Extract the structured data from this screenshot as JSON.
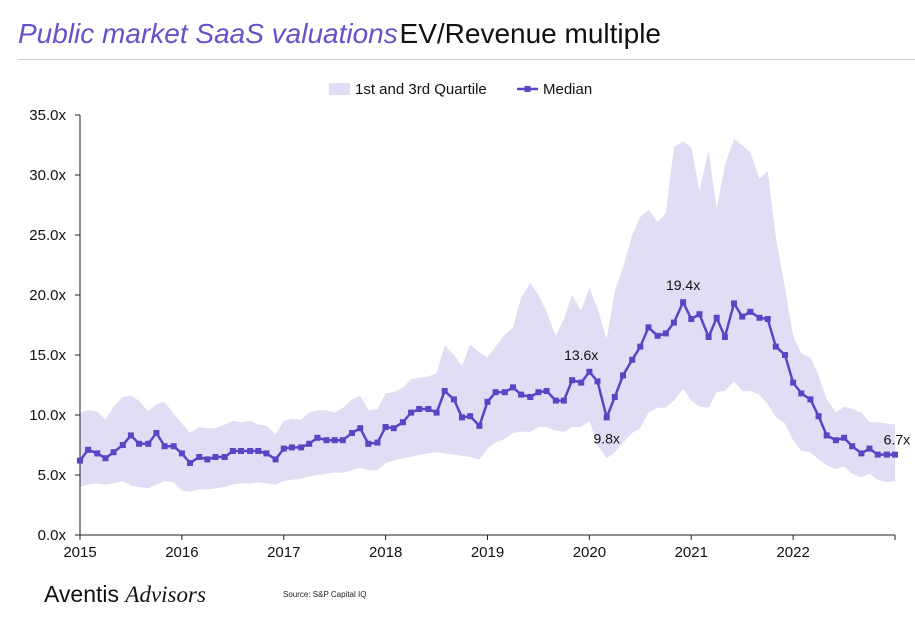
{
  "title": "Public market SaaS valuations",
  "subtitle": "EV/Revenue multiple",
  "brand": {
    "part1": "Aventis",
    "part2": "Advisors"
  },
  "source": "Source: S&P Capital IQ",
  "colors": {
    "median": "#5b45c4",
    "band": "#e2dcf4",
    "title": "#6a4fc9"
  },
  "chart_data": {
    "type": "line",
    "title": "",
    "xlabel": "",
    "ylabel": "",
    "xlim": [
      2015.0,
      2023.0
    ],
    "ylim": [
      0,
      35
    ],
    "x_ticks": [
      {
        "v": 2015,
        "label": "2015"
      },
      {
        "v": 2016,
        "label": "2016"
      },
      {
        "v": 2017,
        "label": "2017"
      },
      {
        "v": 2018,
        "label": "2018"
      },
      {
        "v": 2019,
        "label": "2019"
      },
      {
        "v": 2020,
        "label": "2020"
      },
      {
        "v": 2021,
        "label": "2021"
      },
      {
        "v": 2022,
        "label": "2022"
      }
    ],
    "y_ticks": [
      {
        "v": 0,
        "label": "0.0x"
      },
      {
        "v": 5,
        "label": "5.0x"
      },
      {
        "v": 10,
        "label": "10.0x"
      },
      {
        "v": 15,
        "label": "15.0x"
      },
      {
        "v": 20,
        "label": "20.0x"
      },
      {
        "v": 25,
        "label": "25.0x"
      },
      {
        "v": 30,
        "label": "30.0x"
      },
      {
        "v": 35,
        "label": "35.0x"
      }
    ],
    "grid": false,
    "legend": {
      "position": "top-center",
      "band_label": "1st and 3rd Quartile",
      "line_label": "Median"
    },
    "x": [
      2015.0,
      2015.08,
      2015.17,
      2015.25,
      2015.33,
      2015.42,
      2015.5,
      2015.58,
      2015.67,
      2015.75,
      2015.83,
      2015.92,
      2016.0,
      2016.08,
      2016.17,
      2016.25,
      2016.33,
      2016.42,
      2016.5,
      2016.58,
      2016.67,
      2016.75,
      2016.83,
      2016.92,
      2017.0,
      2017.08,
      2017.17,
      2017.25,
      2017.33,
      2017.42,
      2017.5,
      2017.58,
      2017.67,
      2017.75,
      2017.83,
      2017.92,
      2018.0,
      2018.08,
      2018.17,
      2018.25,
      2018.33,
      2018.42,
      2018.5,
      2018.58,
      2018.67,
      2018.75,
      2018.83,
      2018.92,
      2019.0,
      2019.08,
      2019.17,
      2019.25,
      2019.33,
      2019.42,
      2019.5,
      2019.58,
      2019.67,
      2019.75,
      2019.83,
      2019.92,
      2020.0,
      2020.08,
      2020.17,
      2020.25,
      2020.33,
      2020.42,
      2020.5,
      2020.58,
      2020.67,
      2020.75,
      2020.83,
      2020.92,
      2021.0,
      2021.08,
      2021.17,
      2021.25,
      2021.33,
      2021.42,
      2021.5,
      2021.58,
      2021.67,
      2021.75,
      2021.83,
      2021.92,
      2022.0,
      2022.08,
      2022.17,
      2022.25,
      2022.33,
      2022.42,
      2022.5,
      2022.58,
      2022.67,
      2022.75,
      2022.83,
      2022.92,
      2023.0
    ],
    "series": [
      {
        "name": "Median",
        "values": [
          6.2,
          7.1,
          6.8,
          6.4,
          6.9,
          7.5,
          8.3,
          7.6,
          7.6,
          8.5,
          7.4,
          7.4,
          6.8,
          6.0,
          6.5,
          6.3,
          6.5,
          6.5,
          7.0,
          7.0,
          7.0,
          7.0,
          6.8,
          6.3,
          7.2,
          7.3,
          7.3,
          7.6,
          8.1,
          7.9,
          7.9,
          7.9,
          8.5,
          8.9,
          7.6,
          7.7,
          9.0,
          8.9,
          9.4,
          10.2,
          10.5,
          10.5,
          10.2,
          12.0,
          11.3,
          9.8,
          9.9,
          9.1,
          11.1,
          11.9,
          11.9,
          12.3,
          11.7,
          11.5,
          11.9,
          12.0,
          11.2,
          11.2,
          12.9,
          12.7,
          13.6,
          12.8,
          9.8,
          11.5,
          13.3,
          14.6,
          15.7,
          17.3,
          16.6,
          16.8,
          17.7,
          19.4,
          18.0,
          18.4,
          16.5,
          18.1,
          16.5,
          19.3,
          18.2,
          18.6,
          18.1,
          18.0,
          15.7,
          15.0,
          12.7,
          11.8,
          11.3,
          9.9,
          8.3,
          7.9,
          8.1,
          7.4,
          6.8,
          7.2,
          6.7,
          6.7,
          6.7
        ]
      },
      {
        "name": "1st Quartile",
        "values": [
          4.0,
          4.2,
          4.3,
          4.2,
          4.3,
          4.5,
          4.1,
          4.0,
          3.9,
          4.2,
          4.5,
          4.4,
          3.7,
          3.6,
          3.8,
          3.8,
          3.9,
          4.0,
          4.2,
          4.3,
          4.3,
          4.4,
          4.3,
          4.2,
          4.5,
          4.6,
          4.7,
          4.9,
          5.0,
          5.1,
          5.2,
          5.2,
          5.4,
          5.6,
          5.4,
          5.4,
          6.0,
          6.2,
          6.4,
          6.5,
          6.7,
          6.8,
          6.9,
          6.8,
          6.7,
          6.6,
          6.5,
          6.3,
          7.2,
          7.7,
          8.0,
          8.5,
          8.6,
          8.6,
          9.0,
          9.0,
          8.7,
          8.6,
          9.0,
          9.0,
          9.5,
          7.5,
          6.4,
          6.9,
          7.7,
          8.5,
          8.9,
          10.2,
          10.6,
          10.6,
          11.2,
          12.2,
          11.2,
          10.7,
          10.6,
          11.9,
          12.0,
          12.8,
          12.0,
          12.0,
          11.7,
          10.9,
          9.8,
          9.3,
          7.9,
          7.0,
          6.9,
          6.3,
          5.8,
          5.5,
          5.7,
          5.1,
          4.8,
          5.1,
          4.6,
          4.4,
          4.5
        ]
      },
      {
        "name": "3rd Quartile",
        "values": [
          10.2,
          10.4,
          10.3,
          9.6,
          10.7,
          11.5,
          11.6,
          11.2,
          10.3,
          10.9,
          11.1,
          10.1,
          9.3,
          8.5,
          9.0,
          8.9,
          8.9,
          9.2,
          9.5,
          9.4,
          9.5,
          9.2,
          9.1,
          8.4,
          9.5,
          9.7,
          9.6,
          10.2,
          10.4,
          10.4,
          10.2,
          10.6,
          11.3,
          11.6,
          10.4,
          10.5,
          11.8,
          11.9,
          12.3,
          13.0,
          13.1,
          13.2,
          13.5,
          15.8,
          15.0,
          14.1,
          15.9,
          15.2,
          14.8,
          15.7,
          16.7,
          17.3,
          19.8,
          21.0,
          20.0,
          18.6,
          16.6,
          18.0,
          20.0,
          18.7,
          20.6,
          18.9,
          16.3,
          20.3,
          22.3,
          25.0,
          26.5,
          27.1,
          26.1,
          26.8,
          32.3,
          32.8,
          32.3,
          28.7,
          32.0,
          27.2,
          30.8,
          33.0,
          32.5,
          31.9,
          29.7,
          30.3,
          24.8,
          20.6,
          16.6,
          15.1,
          14.8,
          13.3,
          11.3,
          10.2,
          10.7,
          10.5,
          10.2,
          9.4,
          9.4,
          9.3,
          9.2
        ]
      }
    ],
    "annotations": [
      {
        "x": 2019.92,
        "y": 13.6,
        "label": "13.6x",
        "pos": "above"
      },
      {
        "x": 2020.17,
        "y": 9.8,
        "label": "9.8x",
        "pos": "below"
      },
      {
        "x": 2020.92,
        "y": 19.4,
        "label": "19.4x",
        "pos": "above"
      },
      {
        "x": 2022.92,
        "y": 6.7,
        "label": "6.7x",
        "pos": "above-right"
      }
    ]
  }
}
